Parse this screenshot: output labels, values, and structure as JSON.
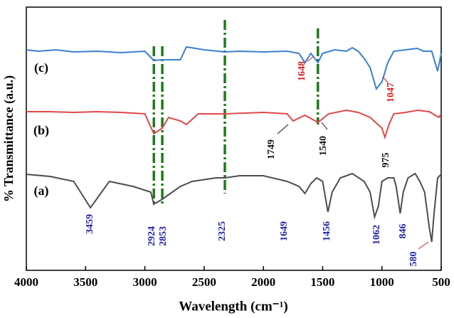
{
  "chart_data": {
    "type": "line",
    "xlabel": "Wavelength (cm⁻¹)",
    "ylabel": "% Transmittance (a.u.)",
    "xlim": [
      4000,
      500
    ],
    "xticks": [
      4000,
      3500,
      3000,
      2500,
      2000,
      1500,
      1000,
      500
    ],
    "ylim": [
      0,
      370
    ],
    "series": [
      {
        "name": "(a)",
        "color": "#4d4d4d",
        "x": [
          4000,
          3800,
          3600,
          3459,
          3300,
          3100,
          2950,
          2924,
          2853,
          2700,
          2600,
          2400,
          2325,
          2200,
          2000,
          1800,
          1700,
          1649,
          1600,
          1550,
          1500,
          1456,
          1420,
          1350,
          1250,
          1150,
          1100,
          1062,
          1030,
          1000,
          950,
          900,
          880,
          846,
          820,
          780,
          720,
          680,
          640,
          600,
          580,
          560,
          530,
          500
        ],
        "values": [
          135,
          132,
          125,
          88,
          125,
          118,
          110,
          93,
          100,
          118,
          125,
          130,
          130,
          133,
          133,
          125,
          118,
          108,
          122,
          130,
          125,
          82,
          110,
          130,
          136,
          125,
          110,
          75,
          90,
          125,
          130,
          130,
          118,
          80,
          110,
          130,
          136,
          125,
          110,
          60,
          40,
          80,
          130,
          135
        ]
      },
      {
        "name": "(b)",
        "color": "#e04848",
        "x": [
          4000,
          3800,
          3600,
          3400,
          3200,
          3000,
          2924,
          2853,
          2800,
          2700,
          2650,
          2550,
          2325,
          2000,
          1800,
          1749,
          1650,
          1540,
          1450,
          1300,
          1200,
          1100,
          1000,
          975,
          940,
          900,
          800,
          700,
          600,
          520,
          500
        ],
        "values": [
          223,
          223,
          222,
          223,
          222,
          220,
          192,
          200,
          215,
          210,
          205,
          220,
          220,
          222,
          220,
          210,
          218,
          208,
          220,
          225,
          222,
          215,
          200,
          187,
          205,
          220,
          222,
          225,
          223,
          215,
          220
        ]
      },
      {
        "name": "(c)",
        "color": "#3a7fd0",
        "x": [
          4000,
          3900,
          3750,
          3600,
          3400,
          3200,
          3000,
          2924,
          2853,
          2700,
          2650,
          2500,
          2325,
          2200,
          2000,
          1800,
          1700,
          1648,
          1600,
          1540,
          1500,
          1400,
          1300,
          1250,
          1200,
          1150,
          1100,
          1047,
          1000,
          950,
          900,
          800,
          700,
          650,
          580,
          530,
          500
        ],
        "values": [
          310,
          308,
          310,
          307,
          308,
          306,
          308,
          295,
          296,
          296,
          314,
          310,
          307,
          308,
          307,
          308,
          305,
          292,
          305,
          292,
          305,
          310,
          308,
          313,
          308,
          298,
          285,
          255,
          265,
          292,
          308,
          310,
          312,
          308,
          308,
          280,
          305
        ]
      }
    ],
    "vlines": [
      2924,
      2853,
      2325,
      1540
    ],
    "vline_color": "#1e7a1e",
    "annotations": [
      {
        "text": "3459",
        "color": "#2323a8"
      },
      {
        "text": "2924",
        "color": "#2323a8"
      },
      {
        "text": "2853",
        "color": "#2323a8"
      },
      {
        "text": "2325",
        "color": "#2323a8"
      },
      {
        "text": "1649",
        "color": "#2323a8"
      },
      {
        "text": "1456",
        "color": "#2323a8"
      },
      {
        "text": "1062",
        "color": "#2323a8"
      },
      {
        "text": "846",
        "color": "#2323a8"
      },
      {
        "text": "580",
        "color": "#2323a8"
      },
      {
        "text": "1749",
        "color": "#111111"
      },
      {
        "text": "1540",
        "color": "#111111"
      },
      {
        "text": "975",
        "color": "#111111"
      },
      {
        "text": "1648",
        "color": "#d42020"
      },
      {
        "text": "1047",
        "color": "#d42020"
      }
    ]
  }
}
